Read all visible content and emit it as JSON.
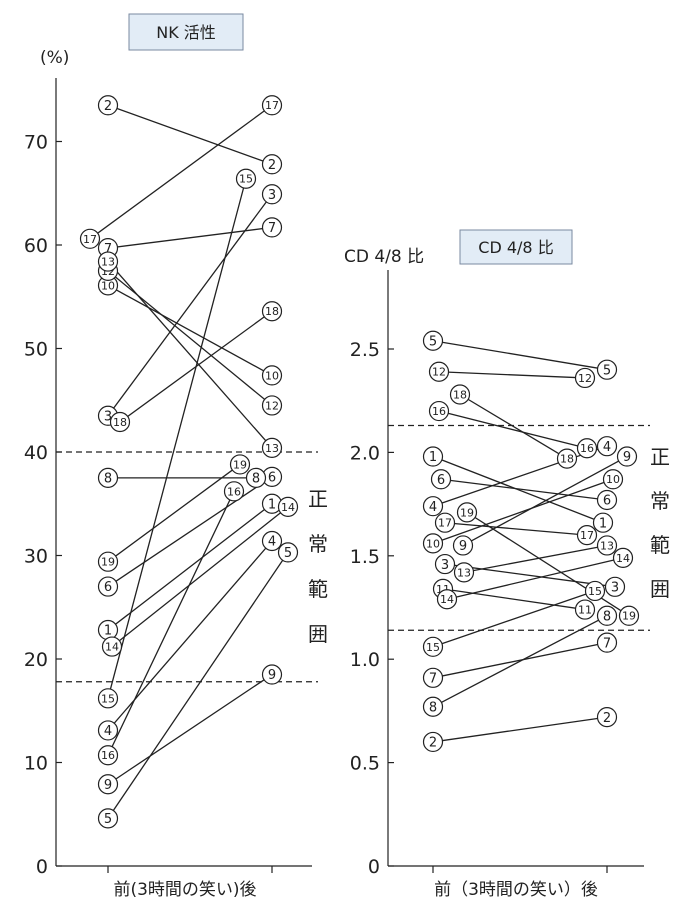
{
  "chart_data": [
    {
      "type": "line",
      "title": "NK 活性",
      "ylabel": "(%)",
      "xlabel": "前(3時間の笑い)後",
      "ylim": [
        0,
        75
      ],
      "yticks": [
        0,
        10,
        20,
        30,
        40,
        50,
        60,
        70
      ],
      "normal_range": [
        17.8,
        40.0
      ],
      "normal_range_label": "正常範囲",
      "series": [
        {
          "name": "1",
          "values": [
            22.8,
            35.0
          ]
        },
        {
          "name": "2",
          "values": [
            73.5,
            67.8
          ]
        },
        {
          "name": "3",
          "values": [
            43.5,
            64.9
          ]
        },
        {
          "name": "4",
          "values": [
            13.1,
            31.4
          ]
        },
        {
          "name": "5",
          "values": [
            4.6,
            30.3
          ]
        },
        {
          "name": "6",
          "values": [
            27.0,
            37.6
          ]
        },
        {
          "name": "7",
          "values": [
            59.7,
            61.7
          ]
        },
        {
          "name": "8",
          "values": [
            37.5,
            37.5
          ]
        },
        {
          "name": "9",
          "values": [
            7.9,
            18.5
          ]
        },
        {
          "name": "10",
          "values": [
            56.1,
            47.4
          ]
        },
        {
          "name": "11",
          "values": [
            null,
            null
          ]
        },
        {
          "name": "12",
          "values": [
            57.5,
            44.5
          ]
        },
        {
          "name": "13",
          "values": [
            58.4,
            40.4
          ]
        },
        {
          "name": "14",
          "values": [
            21.2,
            34.7
          ]
        },
        {
          "name": "15",
          "values": [
            16.2,
            66.4
          ]
        },
        {
          "name": "16",
          "values": [
            10.7,
            36.2
          ]
        },
        {
          "name": "17",
          "values": [
            60.6,
            73.5
          ]
        },
        {
          "name": "18",
          "values": [
            42.9,
            53.6
          ]
        },
        {
          "name": "19",
          "values": [
            29.4,
            38.8
          ]
        }
      ]
    },
    {
      "type": "line",
      "title": "CD 4/8 比",
      "ylabel": "CD 4/8 比",
      "xlabel": "前（3時間の笑い）後",
      "ylim": [
        0,
        2.9
      ],
      "yticks": [
        0,
        0.5,
        1.0,
        1.5,
        2.0,
        2.5
      ],
      "ytick_labels": [
        "0",
        "0.5",
        "1.0",
        "1.5",
        "2.0",
        "2.5"
      ],
      "normal_range": [
        1.14,
        2.13
      ],
      "normal_range_label": "正常範囲",
      "series": [
        {
          "name": "1",
          "values": [
            1.98,
            1.66
          ]
        },
        {
          "name": "2",
          "values": [
            0.6,
            0.72
          ]
        },
        {
          "name": "3",
          "values": [
            1.46,
            1.35
          ]
        },
        {
          "name": "4",
          "values": [
            1.74,
            2.03
          ]
        },
        {
          "name": "5",
          "values": [
            2.54,
            2.4
          ]
        },
        {
          "name": "6",
          "values": [
            1.87,
            1.77
          ]
        },
        {
          "name": "7",
          "values": [
            0.91,
            1.08
          ]
        },
        {
          "name": "8",
          "values": [
            0.77,
            1.21
          ]
        },
        {
          "name": "9",
          "values": [
            1.55,
            1.98
          ]
        },
        {
          "name": "10",
          "values": [
            1.56,
            1.87
          ]
        },
        {
          "name": "11",
          "values": [
            1.34,
            1.24
          ]
        },
        {
          "name": "12",
          "values": [
            2.39,
            2.36
          ]
        },
        {
          "name": "13",
          "values": [
            1.42,
            1.55
          ]
        },
        {
          "name": "14",
          "values": [
            1.29,
            1.49
          ]
        },
        {
          "name": "15",
          "values": [
            1.06,
            1.33
          ]
        },
        {
          "name": "16",
          "values": [
            2.2,
            2.02
          ]
        },
        {
          "name": "17",
          "values": [
            1.66,
            1.6
          ]
        },
        {
          "name": "18",
          "values": [
            2.28,
            1.97
          ]
        },
        {
          "name": "19",
          "values": [
            1.71,
            1.21
          ]
        }
      ]
    }
  ]
}
